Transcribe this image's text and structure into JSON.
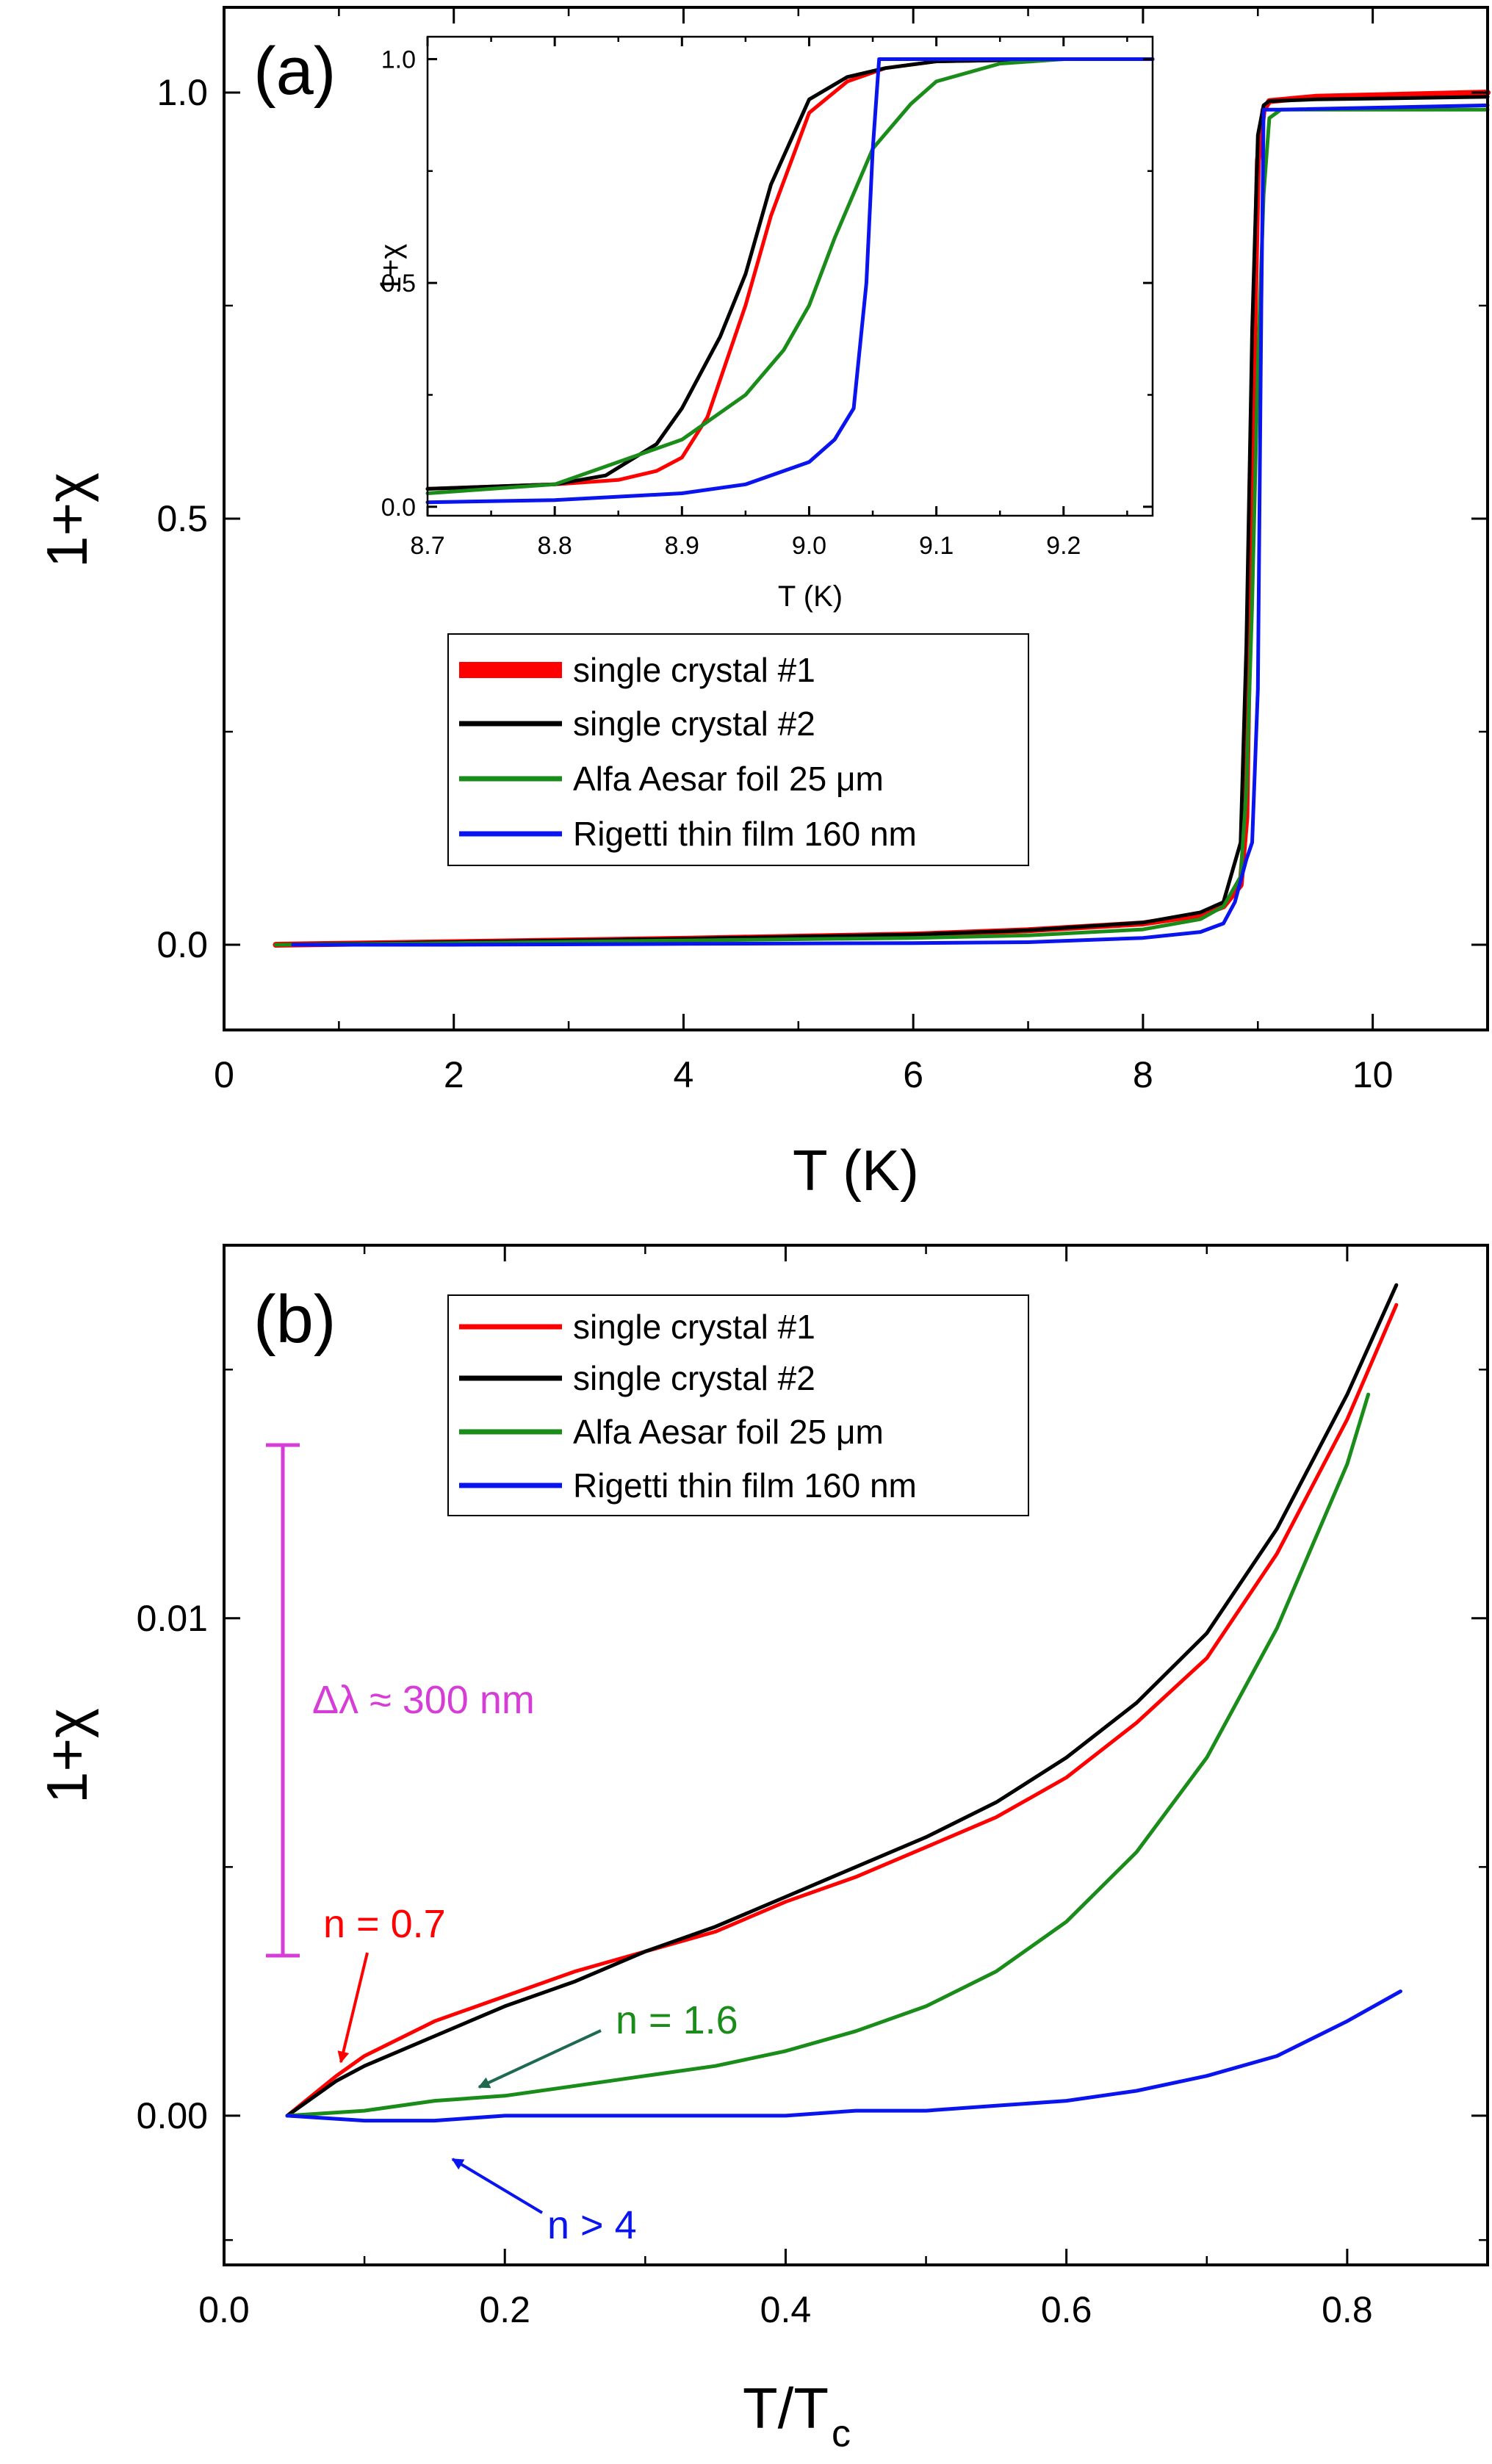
{
  "colors": {
    "single_crystal_1": "#ff0000",
    "single_crystal_2": "#000000",
    "alfa_aesar": "#1a8c1a",
    "rigetti": "#0a14ee",
    "delta_lambda": "#d63cd6",
    "arrow_green": "#1f6a4f"
  },
  "chart_data": [
    {
      "id": "a",
      "type": "line",
      "panel_label": "(a)",
      "xlabel": "T (K)",
      "ylabel": "1+χ",
      "xlim": [
        0,
        11
      ],
      "ylim": [
        -0.1,
        1.1
      ],
      "xticks": [
        "0",
        "2",
        "4",
        "6",
        "8",
        "10"
      ],
      "yticks": [
        "0.0",
        "0.5",
        "1.0"
      ],
      "legend": {
        "placement": "center",
        "entries": [
          "single crystal #1",
          "single crystal #2",
          "Alfa Aesar foil 25 μm",
          "Rigetti thin film 160 nm"
        ]
      },
      "series": [
        {
          "name": "single crystal #1",
          "x": [
            0.45,
            2,
            4,
            6,
            7,
            8,
            8.5,
            8.7,
            8.85,
            8.9,
            8.95,
            9.0,
            9.05,
            9.1,
            9.5,
            11
          ],
          "y": [
            0.0,
            0.003,
            0.007,
            0.012,
            0.017,
            0.025,
            0.035,
            0.045,
            0.07,
            0.15,
            0.6,
            0.92,
            0.98,
            0.99,
            0.995,
            1.0
          ]
        },
        {
          "name": "single crystal #2",
          "x": [
            0.45,
            2,
            4,
            6,
            7,
            8,
            8.5,
            8.7,
            8.85,
            8.9,
            8.95,
            9.0,
            9.05,
            9.1,
            9.5,
            11
          ],
          "y": [
            0.0,
            0.003,
            0.007,
            0.012,
            0.017,
            0.026,
            0.038,
            0.05,
            0.12,
            0.35,
            0.72,
            0.95,
            0.985,
            0.99,
            0.992,
            0.995
          ]
        },
        {
          "name": "Alfa Aesar foil 25 μm",
          "x": [
            0.45,
            2,
            4,
            6,
            7,
            8,
            8.5,
            8.7,
            8.85,
            8.9,
            8.95,
            9.0,
            9.05,
            9.1,
            9.2,
            11
          ],
          "y": [
            0.0,
            0.002,
            0.005,
            0.008,
            0.011,
            0.018,
            0.03,
            0.045,
            0.08,
            0.18,
            0.4,
            0.68,
            0.88,
            0.97,
            0.98,
            0.98
          ]
        },
        {
          "name": "Rigetti thin film 160 nm",
          "x": [
            0.6,
            2,
            4,
            6,
            7,
            8,
            8.5,
            8.7,
            8.8,
            8.9,
            8.95,
            9.0,
            9.03,
            9.05,
            9.2,
            11
          ],
          "y": [
            0.0,
            0.0,
            0.001,
            0.002,
            0.003,
            0.008,
            0.015,
            0.025,
            0.05,
            0.1,
            0.12,
            0.3,
            0.75,
            0.98,
            0.98,
            0.985
          ]
        }
      ]
    },
    {
      "id": "a_inset",
      "type": "line",
      "xlabel": "T (K)",
      "ylabel": "1+χ",
      "xlim": [
        8.7,
        9.27
      ],
      "ylim": [
        -0.02,
        1.05
      ],
      "xticks": [
        "8.7",
        "8.8",
        "8.9",
        "9.0",
        "9.1",
        "9.2"
      ],
      "yticks": [
        "0.0",
        "0.5",
        "1.0"
      ],
      "series": [
        {
          "name": "single crystal #1",
          "x": [
            8.7,
            8.8,
            8.85,
            8.88,
            8.9,
            8.92,
            8.95,
            8.97,
            9.0,
            9.03,
            9.06,
            9.1,
            9.2,
            9.27
          ],
          "y": [
            0.04,
            0.05,
            0.06,
            0.08,
            0.11,
            0.2,
            0.45,
            0.65,
            0.88,
            0.95,
            0.98,
            0.995,
            1.0,
            1.0
          ]
        },
        {
          "name": "single crystal #2",
          "x": [
            8.7,
            8.8,
            8.84,
            8.88,
            8.9,
            8.93,
            8.95,
            8.97,
            9.0,
            9.03,
            9.06,
            9.1,
            9.2,
            9.27
          ],
          "y": [
            0.04,
            0.05,
            0.07,
            0.14,
            0.22,
            0.38,
            0.52,
            0.72,
            0.91,
            0.96,
            0.98,
            0.995,
            1.0,
            1.0
          ]
        },
        {
          "name": "Alfa Aesar foil 25 μm",
          "x": [
            8.7,
            8.8,
            8.85,
            8.9,
            8.95,
            8.98,
            9.0,
            9.02,
            9.05,
            9.08,
            9.1,
            9.15,
            9.2,
            9.27
          ],
          "y": [
            0.03,
            0.05,
            0.1,
            0.15,
            0.25,
            0.35,
            0.45,
            0.6,
            0.8,
            0.9,
            0.95,
            0.99,
            1.0,
            1.0
          ]
        },
        {
          "name": "Rigetti thin film 160 nm",
          "x": [
            8.7,
            8.8,
            8.9,
            8.95,
            9.0,
            9.02,
            9.035,
            9.045,
            9.05,
            9.055,
            9.1,
            9.2,
            9.27
          ],
          "y": [
            0.01,
            0.015,
            0.03,
            0.05,
            0.1,
            0.15,
            0.22,
            0.5,
            0.8,
            1.0,
            1.0,
            1.0,
            1.0
          ]
        }
      ]
    },
    {
      "id": "b",
      "type": "line",
      "panel_label": "(b)",
      "xlabel": "T/T",
      "xlabel_subscript": "c",
      "ylabel": "1+χ",
      "xlim": [
        0.0,
        0.9
      ],
      "ylim": [
        -0.003,
        0.0175
      ],
      "xticks": [
        "0.0",
        "0.2",
        "0.4",
        "0.6",
        "0.8"
      ],
      "yticks": [
        "0.00",
        "0.01"
      ],
      "legend": {
        "placement": "top-center",
        "entries": [
          "single crystal #1",
          "single crystal #2",
          "Alfa Aesar foil 25 μm",
          "Rigetti thin film 160 nm"
        ]
      },
      "annotations": [
        "Δλ ≈ 300 nm",
        "n = 0.7",
        "n = 1.6",
        "n > 4"
      ],
      "series": [
        {
          "name": "single crystal #1",
          "x": [
            0.045,
            0.08,
            0.1,
            0.15,
            0.2,
            0.25,
            0.3,
            0.35,
            0.4,
            0.45,
            0.5,
            0.55,
            0.6,
            0.65,
            0.7,
            0.75,
            0.8,
            0.835
          ],
          "y": [
            0.0,
            0.0008,
            0.0012,
            0.0019,
            0.0024,
            0.0029,
            0.0033,
            0.0037,
            0.0043,
            0.0048,
            0.0054,
            0.006,
            0.0068,
            0.0079,
            0.0092,
            0.0113,
            0.014,
            0.0163
          ]
        },
        {
          "name": "single crystal #2",
          "x": [
            0.045,
            0.08,
            0.1,
            0.15,
            0.2,
            0.25,
            0.3,
            0.35,
            0.4,
            0.45,
            0.5,
            0.55,
            0.6,
            0.65,
            0.7,
            0.75,
            0.8,
            0.835
          ],
          "y": [
            0.0,
            0.0007,
            0.001,
            0.0016,
            0.0022,
            0.0027,
            0.0033,
            0.0038,
            0.0044,
            0.005,
            0.0056,
            0.0063,
            0.0072,
            0.0083,
            0.0097,
            0.0118,
            0.0145,
            0.0167
          ]
        },
        {
          "name": "Alfa Aesar foil 25 μm",
          "x": [
            0.045,
            0.1,
            0.15,
            0.2,
            0.25,
            0.3,
            0.35,
            0.4,
            0.45,
            0.5,
            0.55,
            0.6,
            0.65,
            0.7,
            0.75,
            0.8,
            0.815
          ],
          "y": [
            0.0,
            0.0001,
            0.0003,
            0.0004,
            0.0006,
            0.0008,
            0.001,
            0.0013,
            0.0017,
            0.0022,
            0.0029,
            0.0039,
            0.0053,
            0.0072,
            0.0098,
            0.0131,
            0.0145
          ]
        },
        {
          "name": "Rigetti thin film 160 nm",
          "x": [
            0.045,
            0.1,
            0.15,
            0.2,
            0.25,
            0.3,
            0.35,
            0.4,
            0.45,
            0.5,
            0.55,
            0.6,
            0.65,
            0.7,
            0.75,
            0.8,
            0.838
          ],
          "y": [
            0.0,
            -0.0001,
            -0.0001,
            0.0,
            0.0,
            0.0,
            0.0,
            0.0,
            0.0001,
            0.0001,
            0.0002,
            0.0003,
            0.0005,
            0.0008,
            0.0012,
            0.0019,
            0.0025
          ]
        }
      ]
    }
  ]
}
